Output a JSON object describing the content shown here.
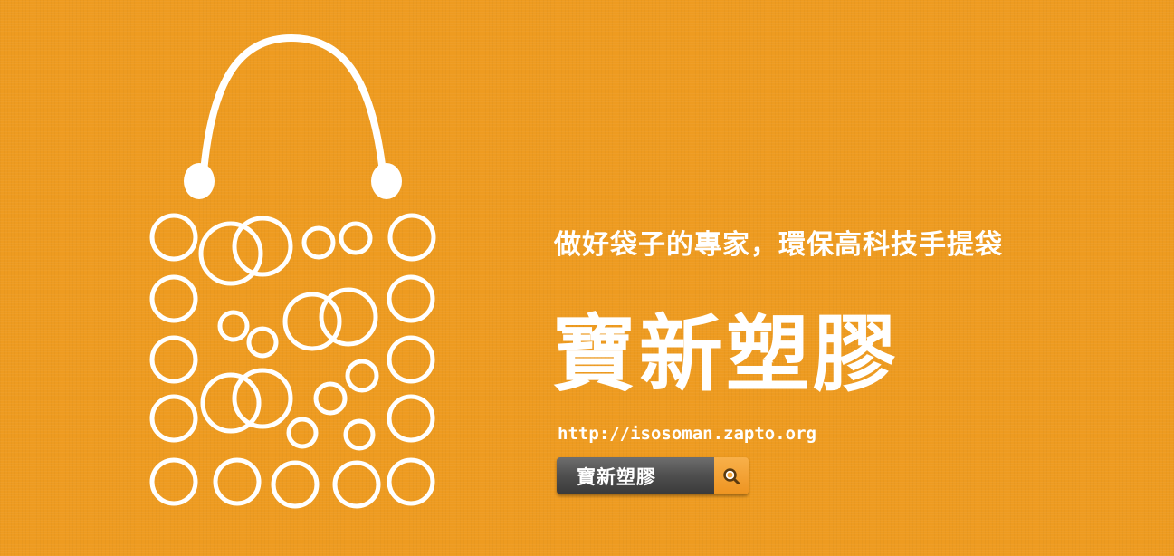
{
  "colors": {
    "background": "#EE9B20",
    "foreground": "#FFFFFF",
    "search_field": "#4E4E4E",
    "search_button": "#F2A033"
  },
  "logo": {
    "icon": "shopping-bag-icon"
  },
  "tagline": "做好袋子的專家，環保高科技手提袋",
  "brand_name": "寶新塑膠",
  "url": "http://isosoman.zapto.org",
  "search": {
    "value": "寶新塑膠",
    "button_icon": "search-icon"
  }
}
